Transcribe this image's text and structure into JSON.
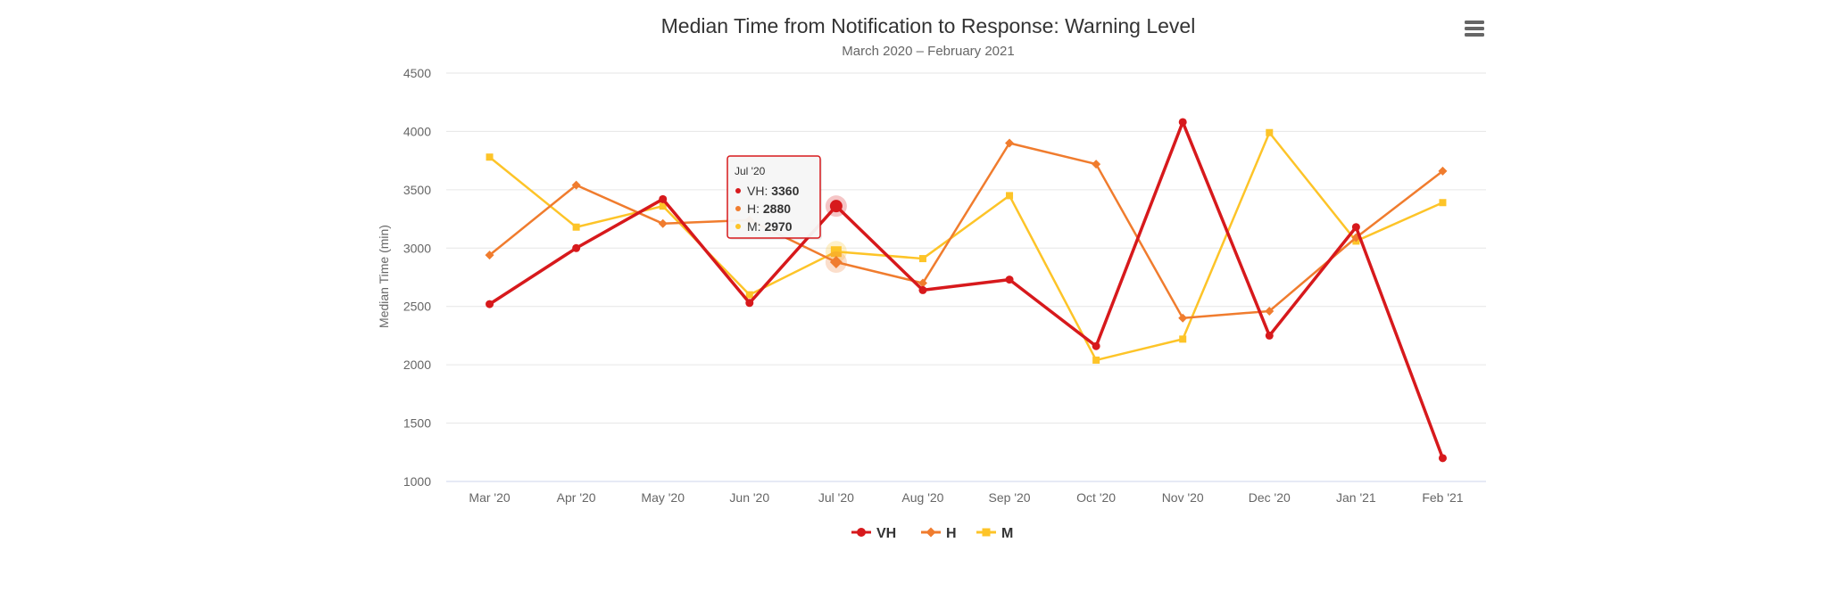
{
  "chart_data": {
    "type": "line",
    "title": "Median Time from Notification to Response: Warning Level",
    "subtitle": "March 2020 – February 2021",
    "ylabel": "Median Time (min)",
    "xlabel": "",
    "ylim": [
      1000,
      4500
    ],
    "yticks": [
      1000,
      1500,
      2000,
      2500,
      3000,
      3500,
      4000,
      4500
    ],
    "categories": [
      "Mar '20",
      "Apr '20",
      "May '20",
      "Jun '20",
      "Jul '20",
      "Aug '20",
      "Sep '20",
      "Oct '20",
      "Nov '20",
      "Dec '20",
      "Jan '21",
      "Feb '21"
    ],
    "grid": true,
    "legend_position": "bottom-center",
    "series": [
      {
        "name": "VH",
        "color": "#d7191c",
        "marker": "circle",
        "values": [
          2520,
          3000,
          3420,
          2530,
          3360,
          2640,
          2730,
          2160,
          4080,
          2250,
          3180,
          1200
        ]
      },
      {
        "name": "H",
        "color": "#f07c2e",
        "marker": "diamond",
        "values": [
          2940,
          3540,
          3210,
          3240,
          2880,
          2700,
          3900,
          3720,
          2400,
          2460,
          3090,
          3660
        ]
      },
      {
        "name": "M",
        "color": "#fdc428",
        "marker": "square",
        "values": [
          3780,
          3180,
          3360,
          2600,
          2970,
          2910,
          3450,
          2040,
          2220,
          3990,
          3060,
          3390
        ]
      }
    ],
    "tooltip": {
      "category": "Jul '20",
      "rows": [
        {
          "series": "VH",
          "value": "3360"
        },
        {
          "series": "H",
          "value": "2880"
        },
        {
          "series": "M",
          "value": "2970"
        }
      ]
    }
  },
  "menu_icon": "hamburger-menu-icon"
}
